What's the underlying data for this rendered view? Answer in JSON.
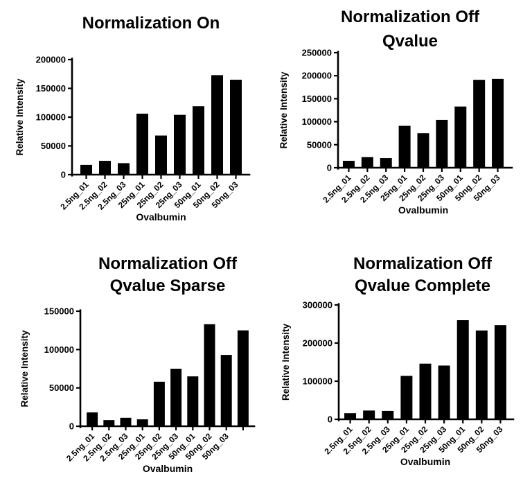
{
  "figure": {
    "background_color": "#ffffff",
    "bar_color": "#000000",
    "axis_color": "#000000",
    "text_color": "#000000"
  },
  "chart_data": [
    {
      "type": "bar",
      "title_lines": [
        "Normalization On"
      ],
      "xlabel": "Ovalbumin",
      "ylabel": "Relative Intensity",
      "categories": [
        "2.5ng_01",
        "2.5ng_02",
        "2.5ng_03",
        "25ng_01",
        "25ng_02",
        "25ng_03",
        "50ng_01",
        "50ng_02",
        "50ng_03"
      ],
      "values": [
        17000,
        24000,
        20000,
        106000,
        68000,
        104000,
        119000,
        173000,
        165000
      ],
      "ylim": [
        0,
        200000
      ],
      "yticks": [
        0,
        50000,
        100000,
        150000,
        200000
      ],
      "grid": "off",
      "legend": "none"
    },
    {
      "type": "bar",
      "title_lines": [
        "Normalization Off",
        "Qvalue"
      ],
      "xlabel": "Ovalbumin",
      "ylabel": "Relative Intensity",
      "categories": [
        "2.5ng_01",
        "2.5ng_02",
        "2.5ng_03",
        "25ng_01",
        "25ng_02",
        "25ng_03",
        "50ng_01",
        "50ng_02",
        "50ng_03"
      ],
      "values": [
        15000,
        23000,
        21000,
        91000,
        75000,
        104000,
        133000,
        191000,
        193000
      ],
      "ylim": [
        0,
        250000
      ],
      "yticks": [
        0,
        50000,
        100000,
        150000,
        200000,
        250000
      ],
      "grid": "off",
      "legend": "none"
    },
    {
      "type": "bar",
      "title_lines": [
        "Normalization Off",
        "Qvalue Sparse"
      ],
      "xlabel": "Ovalbumin",
      "ylabel": "Relative Intensity",
      "categories": [
        "2.5ng_01",
        "2.5ng_02",
        "2.5ng_03",
        "25ng_01",
        "25ng_02",
        "25ng_03",
        "50ng_01",
        "50ng_02",
        "50ng_03"
      ],
      "values": [
        18000,
        8000,
        11000,
        9000,
        58000,
        75000,
        65000,
        133000,
        93000,
        125000
      ],
      "note": "10th bar has an axis tick but no category label",
      "ylim": [
        0,
        150000
      ],
      "yticks": [
        0,
        50000,
        100000,
        150000
      ],
      "grid": "off",
      "legend": "none"
    },
    {
      "type": "bar",
      "title_lines": [
        "Normalization Off",
        "Qvalue Complete"
      ],
      "xlabel": "Ovalbumin",
      "ylabel": "Relative Intensity",
      "categories": [
        "2.5ng_01",
        "2.5ng_02",
        "2.5ng_03",
        "25ng_01",
        "25ng_02",
        "25ng_03",
        "50ng_01",
        "50ng_02",
        "50ng_03"
      ],
      "values": [
        16000,
        23000,
        22000,
        114000,
        146000,
        141000,
        260000,
        233000,
        247000
      ],
      "ylim": [
        0,
        300000
      ],
      "yticks": [
        0,
        100000,
        200000,
        300000
      ],
      "grid": "off",
      "legend": "none"
    }
  ]
}
